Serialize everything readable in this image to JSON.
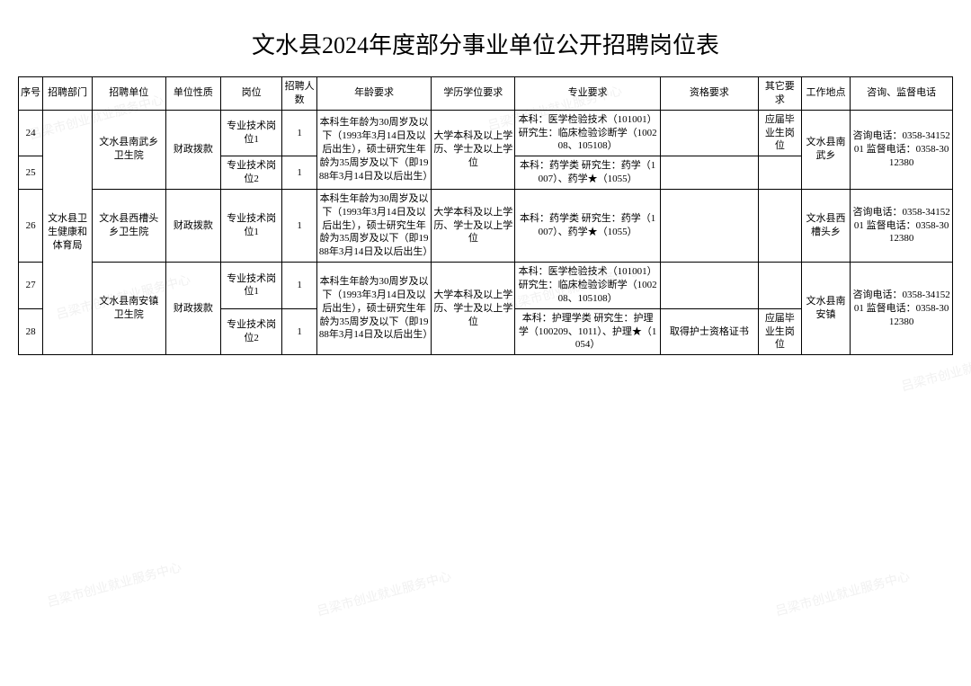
{
  "title": "文水县2024年度部分事业单位公开招聘岗位表",
  "watermark_text": "吕梁市创业就业服务中心",
  "headers": {
    "seq": "序号",
    "dept": "招聘部门",
    "unit": "招聘单位",
    "nature": "单位性质",
    "post": "岗位",
    "num": "招聘人数",
    "age": "年龄要求",
    "edu": "学历学位要求",
    "major": "专业要求",
    "qual": "资格要求",
    "other": "其它要求",
    "loc": "工作地点",
    "phone": "咨询、监督电话"
  },
  "merged": {
    "dept": "文水县卫生健康和体育局",
    "nature": "财政拨款",
    "age_long": "本科生年龄为30周岁及以下（1993年3月14日及以后出生），硕士研究生年龄为35周岁及以下（即1988年3月14日及以后出生）",
    "edu_long": "大学本科及以上学历、学士及以上学位",
    "phone_text": "咨询电话：0358-3415201 监督电话：0358-3012380",
    "unit_a": "文水县南武乡卫生院",
    "loc_a": "文水县南武乡",
    "unit_b": "文水县西槽头乡卫生院",
    "loc_b": "文水县西槽头乡",
    "unit_c": "文水县南安镇卫生院",
    "loc_c": "文水县南安镇"
  },
  "rows": {
    "r24": {
      "seq": "24",
      "post": "专业技术岗位1",
      "num": "1",
      "major": "本科：医学检验技术（101001）研究生：临床检验诊断学（100208、105108）",
      "qual": "",
      "other": "应届毕业生岗位"
    },
    "r25": {
      "seq": "25",
      "post": "专业技术岗位2",
      "num": "1",
      "major": "本科：药学类 研究生：药学（1007）、药学★（1055）",
      "qual": "",
      "other": ""
    },
    "r26": {
      "seq": "26",
      "post": "专业技术岗位1",
      "num": "1",
      "major": "本科：药学类 研究生：药学（1007）、药学★（1055）",
      "qual": "",
      "other": ""
    },
    "r27": {
      "seq": "27",
      "post": "专业技术岗位1",
      "num": "1",
      "major": "本科：医学检验技术（101001）研究生：临床检验诊断学（100208、105108）",
      "qual": "",
      "other": ""
    },
    "r28": {
      "seq": "28",
      "post": "专业技术岗位2",
      "num": "1",
      "major": "本科：护理学类 研究生：护理学（100209、1011）、护理★（1054）",
      "qual": "取得护士资格证书",
      "other": "应届毕业生岗位"
    }
  },
  "styles": {
    "title_fontsize": 26,
    "cell_fontsize": 11,
    "border_color": "#000000",
    "background_color": "#ffffff",
    "watermark_color": "#e8e8e8",
    "font_family": "SimSun"
  }
}
